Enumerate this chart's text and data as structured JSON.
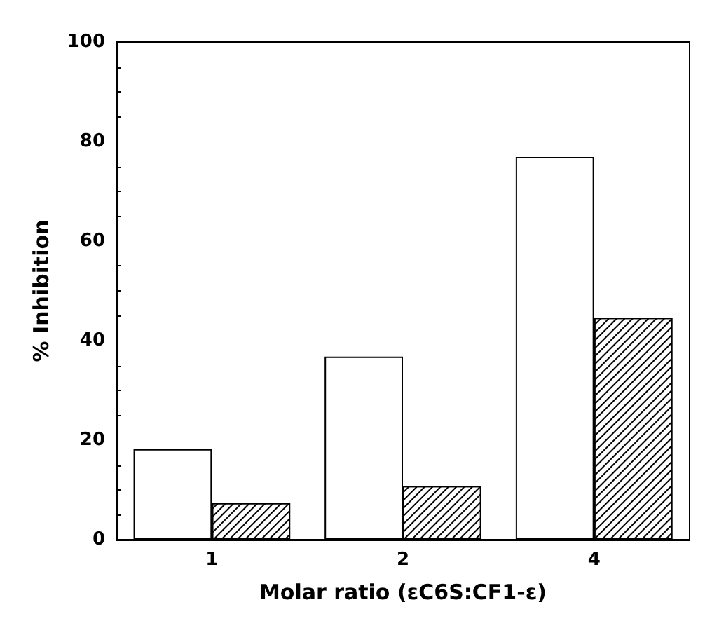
{
  "chart_data": {
    "type": "bar",
    "xlabel": "Molar ratio (εC6S:CF1-ε)",
    "ylabel": "% Inhibition",
    "categories": [
      "1",
      "2",
      "4"
    ],
    "series": [
      {
        "color": "#ffffff",
        "values": [
          18.2,
          36.8,
          76.9
        ]
      },
      {
        "color": "#000000",
        "values": [
          7.4,
          10.8,
          44.6
        ]
      }
    ],
    "ylim": [
      0,
      100
    ],
    "yticks": [
      0,
      20,
      40,
      60,
      80,
      100
    ],
    "grid": false
  }
}
